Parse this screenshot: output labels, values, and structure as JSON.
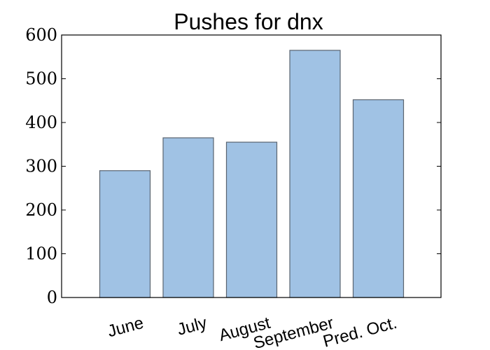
{
  "chart_data": {
    "type": "bar",
    "title": "Pushes for dnx",
    "xlabel": "",
    "ylabel": "",
    "categories": [
      "June",
      "July",
      "August",
      "September",
      "Pred. Oct."
    ],
    "values": [
      290,
      365,
      355,
      565,
      452
    ],
    "ylim": [
      0,
      600
    ],
    "yticks": [
      "0",
      "100",
      "200",
      "300",
      "400",
      "500",
      "600"
    ],
    "grid": false,
    "legend": "none",
    "colors": {
      "bar_fill": "#a0c2e4",
      "bar_stroke": "#5a6470",
      "axis": "#000000"
    }
  }
}
